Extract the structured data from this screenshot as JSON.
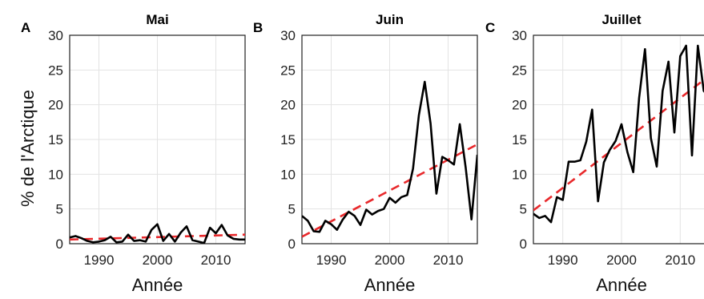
{
  "figure": {
    "shared_ylabel": "% de l'Arctique"
  },
  "chart_data": [
    {
      "type": "line",
      "panel": "A",
      "title": "Mai",
      "xlabel": "Année",
      "ylabel": "% de l'Arctique",
      "xlim": [
        1985,
        2015
      ],
      "ylim": [
        0,
        30
      ],
      "xticks": [
        1990,
        2000,
        2010
      ],
      "yticks": [
        0,
        5,
        10,
        15,
        20,
        25,
        30
      ],
      "grid": true,
      "series": [
        {
          "x": [
            1985,
            1986,
            1987,
            1988,
            1989,
            1990,
            1991,
            1992,
            1993,
            1994,
            1995,
            1996,
            1997,
            1998,
            1999,
            2000,
            2001,
            2002,
            2003,
            2004,
            2005,
            2006,
            2007,
            2008,
            2009,
            2010,
            2011,
            2012,
            2013,
            2014,
            2015
          ],
          "values": [
            0.9,
            1.1,
            0.8,
            0.4,
            0.2,
            0.3,
            0.5,
            1.0,
            0.2,
            0.3,
            1.3,
            0.4,
            0.5,
            0.3,
            2.0,
            2.8,
            0.4,
            1.4,
            0.3,
            1.6,
            2.5,
            0.5,
            0.3,
            0.1,
            2.3,
            1.5,
            2.7,
            1.2,
            0.7,
            0.6,
            0.6
          ]
        }
      ],
      "trend": {
        "x": [
          1985,
          2015
        ],
        "values": [
          0.6,
          1.3
        ]
      }
    },
    {
      "type": "line",
      "panel": "B",
      "title": "Juin",
      "xlabel": "Année",
      "xlim": [
        1985,
        2015
      ],
      "ylim": [
        0,
        30
      ],
      "xticks": [
        1990,
        2000,
        2010
      ],
      "yticks": [
        0,
        5,
        10,
        15,
        20,
        25,
        30
      ],
      "grid": true,
      "series": [
        {
          "x": [
            1985,
            1986,
            1987,
            1988,
            1989,
            1990,
            1991,
            1992,
            1993,
            1994,
            1995,
            1996,
            1997,
            1998,
            1999,
            2000,
            2001,
            2002,
            2003,
            2004,
            2005,
            2006,
            2007,
            2008,
            2009,
            2010,
            2011,
            2012,
            2013,
            2014,
            2015
          ],
          "values": [
            4.0,
            3.3,
            1.8,
            1.7,
            3.3,
            2.8,
            2.0,
            3.5,
            4.6,
            4.0,
            2.7,
            4.9,
            4.2,
            4.7,
            5.0,
            6.6,
            5.9,
            6.7,
            7.0,
            10.8,
            18.5,
            23.3,
            17.3,
            7.2,
            12.5,
            12.0,
            11.4,
            17.2,
            11.0,
            3.5,
            12.8
          ]
        }
      ],
      "trend": {
        "x": [
          1985,
          2015
        ],
        "values": [
          1.0,
          14.3
        ]
      }
    },
    {
      "type": "line",
      "panel": "C",
      "title": "Juillet",
      "xlabel": "Année",
      "xlim": [
        1985,
        2015
      ],
      "ylim": [
        0,
        30
      ],
      "xticks": [
        1990,
        2000,
        2010
      ],
      "yticks": [
        0,
        5,
        10,
        15,
        20,
        25,
        30
      ],
      "grid": true,
      "series": [
        {
          "x": [
            1985,
            1986,
            1987,
            1988,
            1989,
            1990,
            1991,
            1992,
            1993,
            1994,
            1995,
            1996,
            1997,
            1998,
            1999,
            2000,
            2001,
            2002,
            2003,
            2004,
            2005,
            2006,
            2007,
            2008,
            2009,
            2010,
            2011,
            2012,
            2013,
            2014,
            2015
          ],
          "values": [
            4.3,
            3.7,
            4.0,
            3.1,
            6.7,
            6.3,
            11.8,
            11.8,
            12.0,
            14.7,
            19.3,
            6.1,
            11.7,
            13.5,
            14.8,
            17.2,
            13.2,
            10.3,
            21.0,
            28.0,
            15.2,
            11.1,
            22.0,
            26.2,
            16.0,
            27.0,
            28.5,
            12.7,
            28.5,
            22.0,
            21.0
          ]
        }
      ],
      "trend": {
        "x": [
          1985,
          2015
        ],
        "values": [
          4.8,
          24.2
        ]
      }
    }
  ]
}
